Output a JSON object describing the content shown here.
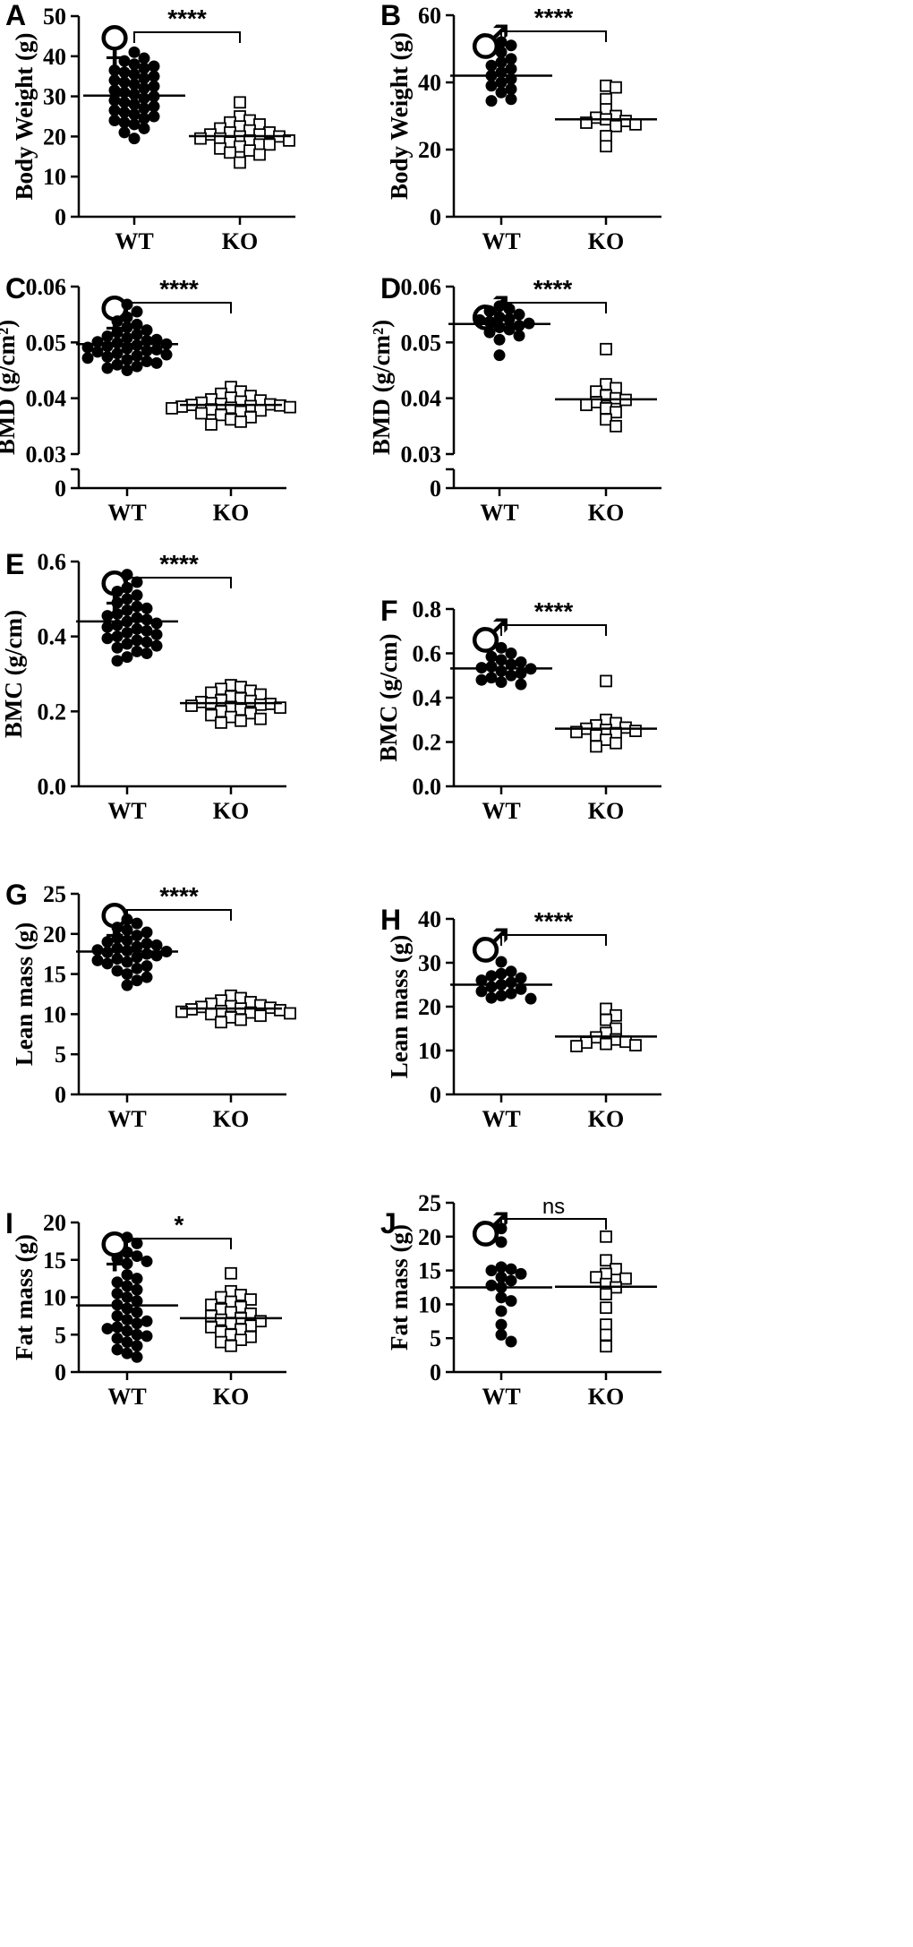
{
  "figure": {
    "categories": [
      "WT",
      "KO"
    ]
  },
  "chart_data": [
    {
      "panel": "A",
      "type": "scatter",
      "sex": "♀",
      "ylabel": "Body Weight (g)",
      "ylim": [
        0,
        50
      ],
      "yticks": [
        0,
        10,
        20,
        30,
        40,
        50
      ],
      "ytick_labels": [
        "0",
        "10",
        "20",
        "30",
        "40",
        "50"
      ],
      "categories": [
        "WT",
        "KO"
      ],
      "significance": "****",
      "series": [
        {
          "name": "WT",
          "marker": "filled-circle",
          "mean": 30.2,
          "values": [
            41.0,
            39.5,
            38.8,
            38.0,
            37.5,
            37.0,
            36.5,
            36.0,
            35.5,
            35.0,
            34.5,
            34.0,
            33.5,
            33.0,
            32.5,
            32.0,
            31.5,
            31.0,
            30.5,
            30.0,
            29.5,
            29.0,
            28.5,
            28.0,
            27.5,
            27.0,
            26.5,
            26.0,
            25.5,
            25.0,
            24.5,
            24.0,
            23.5,
            23.0,
            22.0,
            21.0,
            19.5
          ]
        },
        {
          "name": "KO",
          "marker": "open-square",
          "mean": 20.1,
          "values": [
            28.5,
            25.0,
            24.0,
            23.5,
            23.0,
            22.5,
            22.0,
            21.5,
            21.0,
            21.0,
            20.5,
            20.5,
            20.0,
            20.0,
            19.5,
            19.5,
            19.0,
            19.0,
            18.5,
            18.0,
            18.0,
            17.5,
            17.0,
            16.5,
            16.0,
            15.5,
            13.5
          ]
        }
      ]
    },
    {
      "panel": "B",
      "type": "scatter",
      "sex": "♂",
      "ylabel": "Body Weight (g)",
      "ylim": [
        0,
        60
      ],
      "yticks": [
        0,
        20,
        40,
        60
      ],
      "ytick_labels": [
        "0",
        "20",
        "40",
        "60"
      ],
      "categories": [
        "WT",
        "KO"
      ],
      "significance": "****",
      "series": [
        {
          "name": "WT",
          "marker": "filled-circle",
          "mean": 42.0,
          "values": [
            52.0,
            51.0,
            49.0,
            47.0,
            46.0,
            45.0,
            44.0,
            43.0,
            42.0,
            41.0,
            40.0,
            39.0,
            38.0,
            37.0,
            35.0,
            34.5
          ]
        },
        {
          "name": "KO",
          "marker": "open-square",
          "mean": 29.0,
          "values": [
            39.0,
            38.5,
            35.0,
            32.0,
            30.0,
            29.5,
            29.0,
            28.5,
            28.0,
            27.5,
            27.0,
            24.0,
            21.0
          ]
        }
      ]
    },
    {
      "panel": "C",
      "type": "scatter",
      "sex": "♀",
      "ylabel": "BMD (g/cm²)",
      "ylim": [
        0.03,
        0.06
      ],
      "axis_break": true,
      "yticks": [
        0.03,
        0.04,
        0.05,
        0.06
      ],
      "ytick_labels": [
        "0.03",
        "0.04",
        "0.05",
        "0.06"
      ],
      "break_tick_label": "0",
      "categories": [
        "WT",
        "KO"
      ],
      "significance": "****",
      "series": [
        {
          "name": "WT",
          "marker": "filled-circle",
          "mean": 0.0497,
          "values": [
            0.0568,
            0.0555,
            0.0545,
            0.0538,
            0.0532,
            0.0527,
            0.0522,
            0.0518,
            0.0514,
            0.0511,
            0.0508,
            0.0505,
            0.0503,
            0.0501,
            0.0499,
            0.0497,
            0.0495,
            0.0493,
            0.0491,
            0.0489,
            0.0487,
            0.0485,
            0.0483,
            0.048,
            0.0478,
            0.0476,
            0.0474,
            0.0472,
            0.0469,
            0.0466,
            0.0463,
            0.046,
            0.0457,
            0.0454,
            0.045
          ]
        },
        {
          "name": "KO",
          "marker": "open-square",
          "mean": 0.0388,
          "values": [
            0.042,
            0.0412,
            0.0408,
            0.0404,
            0.0401,
            0.0398,
            0.0396,
            0.0394,
            0.0392,
            0.039,
            0.0389,
            0.0388,
            0.0387,
            0.0386,
            0.0385,
            0.0384,
            0.0383,
            0.0382,
            0.038,
            0.0378,
            0.0376,
            0.0373,
            0.037,
            0.0366,
            0.0362,
            0.0358,
            0.0353
          ]
        }
      ]
    },
    {
      "panel": "D",
      "type": "scatter",
      "sex": "♂",
      "ylabel": "BMD (g/cm²)",
      "ylim": [
        0.03,
        0.06
      ],
      "axis_break": true,
      "yticks": [
        0.03,
        0.04,
        0.05,
        0.06
      ],
      "ytick_labels": [
        "0.03",
        "0.04",
        "0.05",
        "0.06"
      ],
      "break_tick_label": "0",
      "categories": [
        "WT",
        "KO"
      ],
      "significance": "****",
      "series": [
        {
          "name": "WT",
          "marker": "filled-circle",
          "mean": 0.0533,
          "values": [
            0.0565,
            0.056,
            0.0556,
            0.055,
            0.0545,
            0.0542,
            0.054,
            0.0537,
            0.0534,
            0.053,
            0.0527,
            0.0523,
            0.0518,
            0.0512,
            0.0505,
            0.0477
          ]
        },
        {
          "name": "KO",
          "marker": "open-square",
          "mean": 0.0398,
          "values": [
            0.0488,
            0.0425,
            0.0418,
            0.0412,
            0.0405,
            0.04,
            0.0397,
            0.0393,
            0.0388,
            0.0382,
            0.0375,
            0.0362,
            0.035
          ]
        }
      ]
    },
    {
      "panel": "E",
      "type": "scatter",
      "sex": "♀",
      "ylabel": "BMC (g/cm)",
      "ylim": [
        0,
        0.6
      ],
      "yticks": [
        0.0,
        0.2,
        0.4,
        0.6
      ],
      "ytick_labels": [
        "0.0",
        "0.2",
        "0.4",
        "0.6"
      ],
      "categories": [
        "WT",
        "KO"
      ],
      "significance": "****",
      "series": [
        {
          "name": "WT",
          "marker": "filled-circle",
          "mean": 0.44,
          "values": [
            0.565,
            0.545,
            0.53,
            0.52,
            0.51,
            0.5,
            0.49,
            0.48,
            0.475,
            0.47,
            0.46,
            0.455,
            0.45,
            0.445,
            0.44,
            0.435,
            0.43,
            0.425,
            0.42,
            0.415,
            0.41,
            0.405,
            0.4,
            0.395,
            0.39,
            0.385,
            0.38,
            0.375,
            0.37,
            0.36,
            0.355,
            0.345,
            0.335
          ]
        },
        {
          "name": "KO",
          "marker": "open-square",
          "mean": 0.222,
          "values": [
            0.27,
            0.265,
            0.26,
            0.255,
            0.25,
            0.245,
            0.24,
            0.235,
            0.23,
            0.228,
            0.225,
            0.222,
            0.22,
            0.218,
            0.215,
            0.212,
            0.21,
            0.205,
            0.2,
            0.195,
            0.19,
            0.185,
            0.18,
            0.175,
            0.17
          ]
        }
      ]
    },
    {
      "panel": "F",
      "type": "scatter",
      "sex": "♂",
      "ylabel": "BMC (g/cm)",
      "ylim": [
        0,
        0.8
      ],
      "yticks": [
        0.0,
        0.2,
        0.4,
        0.6,
        0.8
      ],
      "ytick_labels": [
        "0.0",
        "0.2",
        "0.4",
        "0.6",
        "0.8"
      ],
      "categories": [
        "WT",
        "KO"
      ],
      "significance": "****",
      "series": [
        {
          "name": "WT",
          "marker": "filled-circle",
          "mean": 0.532,
          "values": [
            0.625,
            0.6,
            0.585,
            0.57,
            0.56,
            0.55,
            0.54,
            0.535,
            0.53,
            0.52,
            0.51,
            0.5,
            0.49,
            0.48,
            0.47,
            0.46
          ]
        },
        {
          "name": "KO",
          "marker": "open-square",
          "mean": 0.26,
          "values": [
            0.475,
            0.3,
            0.285,
            0.275,
            0.265,
            0.26,
            0.255,
            0.25,
            0.245,
            0.24,
            0.23,
            0.21,
            0.195,
            0.18
          ]
        }
      ]
    },
    {
      "panel": "G",
      "type": "scatter",
      "sex": "♀",
      "ylabel": "Lean mass (g)",
      "ylim": [
        0,
        25
      ],
      "yticks": [
        0,
        5,
        10,
        15,
        20,
        25
      ],
      "ytick_labels": [
        "0",
        "5",
        "10",
        "15",
        "20",
        "25"
      ],
      "categories": [
        "WT",
        "KO"
      ],
      "significance": "****",
      "series": [
        {
          "name": "WT",
          "marker": "filled-circle",
          "mean": 17.8,
          "values": [
            21.8,
            21.3,
            20.8,
            20.5,
            20.2,
            19.8,
            19.5,
            19.2,
            19.0,
            18.8,
            18.6,
            18.4,
            18.2,
            18.0,
            17.9,
            17.8,
            17.7,
            17.5,
            17.3,
            17.1,
            16.9,
            16.7,
            16.5,
            16.3,
            16.0,
            15.7,
            15.4,
            15.0,
            14.6,
            14.2,
            13.6
          ]
        },
        {
          "name": "KO",
          "marker": "open-square",
          "mean": 10.7,
          "values": [
            12.3,
            12.0,
            11.7,
            11.5,
            11.3,
            11.1,
            11.0,
            10.9,
            10.8,
            10.7,
            10.6,
            10.5,
            10.4,
            10.3,
            10.2,
            10.1,
            10.0,
            9.8,
            9.6,
            9.3,
            9.0
          ]
        }
      ]
    },
    {
      "panel": "H",
      "type": "scatter",
      "sex": "♂",
      "ylabel": "Lean mass (g)",
      "ylim": [
        0,
        40
      ],
      "yticks": [
        0,
        10,
        20,
        30,
        40
      ],
      "ytick_labels": [
        "0",
        "10",
        "20",
        "30",
        "40"
      ],
      "categories": [
        "WT",
        "KO"
      ],
      "significance": "****",
      "series": [
        {
          "name": "WT",
          "marker": "filled-circle",
          "mean": 25.0,
          "values": [
            30.2,
            28.0,
            27.5,
            27.0,
            26.5,
            26.0,
            25.5,
            25.0,
            24.5,
            24.0,
            23.5,
            23.0,
            22.5,
            22.0,
            21.8
          ]
        },
        {
          "name": "KO",
          "marker": "open-square",
          "mean": 13.2,
          "values": [
            19.5,
            18.0,
            17.0,
            15.0,
            14.0,
            13.0,
            12.5,
            12.0,
            11.8,
            11.5,
            11.2,
            11.0
          ]
        }
      ]
    },
    {
      "panel": "I",
      "type": "scatter",
      "sex": "♀",
      "ylabel": "Fat mass (g)",
      "ylim": [
        0,
        20
      ],
      "yticks": [
        0,
        5,
        10,
        15,
        20
      ],
      "ytick_labels": [
        "0",
        "5",
        "10",
        "15",
        "20"
      ],
      "categories": [
        "WT",
        "KO"
      ],
      "significance": "*",
      "series": [
        {
          "name": "WT",
          "marker": "filled-circle",
          "mean": 8.9,
          "values": [
            18.0,
            17.2,
            16.0,
            15.5,
            15.2,
            14.8,
            14.5,
            13.0,
            12.5,
            12.0,
            11.5,
            11.0,
            10.5,
            10.0,
            9.5,
            9.0,
            8.5,
            8.0,
            7.5,
            7.0,
            6.8,
            6.5,
            6.0,
            5.8,
            5.5,
            5.0,
            4.8,
            4.5,
            4.0,
            3.5,
            3.0,
            2.5,
            2.0
          ]
        },
        {
          "name": "KO",
          "marker": "open-square",
          "mean": 7.2,
          "values": [
            13.2,
            10.8,
            10.3,
            10.0,
            9.7,
            9.4,
            9.0,
            8.7,
            8.4,
            8.0,
            7.8,
            7.5,
            7.2,
            7.0,
            6.8,
            6.5,
            6.2,
            6.0,
            5.7,
            5.4,
            5.0,
            4.7,
            4.3,
            4.0,
            3.5
          ]
        }
      ]
    },
    {
      "panel": "J",
      "type": "scatter",
      "sex": "♂",
      "ylabel": "Fat mass (g)",
      "ylim": [
        0,
        25
      ],
      "yticks": [
        0,
        5,
        10,
        15,
        20,
        25
      ],
      "ytick_labels": [
        "0",
        "5",
        "10",
        "15",
        "20",
        "25"
      ],
      "categories": [
        "WT",
        "KO"
      ],
      "significance": "ns",
      "series": [
        {
          "name": "WT",
          "marker": "filled-circle",
          "mean": 12.5,
          "values": [
            21.2,
            19.2,
            15.5,
            15.2,
            15.0,
            14.5,
            14.0,
            13.5,
            12.8,
            12.5,
            11.0,
            10.5,
            9.0,
            7.0,
            5.5,
            4.5
          ]
        },
        {
          "name": "KO",
          "marker": "open-square",
          "mean": 12.6,
          "values": [
            20.0,
            16.5,
            15.2,
            14.5,
            14.0,
            13.8,
            13.0,
            12.5,
            11.5,
            9.5,
            7.0,
            5.5,
            3.8
          ]
        }
      ]
    }
  ]
}
